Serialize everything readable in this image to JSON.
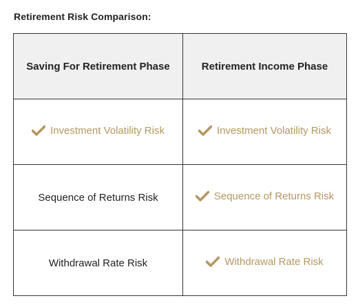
{
  "heading": "Retirement Risk Comparison:",
  "columns": [
    "Saving For Retirement Phase",
    "Retirement Income Phase"
  ],
  "rows": [
    {
      "saving": {
        "label": "Investment Volatility Risk",
        "checked": true
      },
      "income": {
        "label": "Investment Volatility Risk",
        "checked": true
      }
    },
    {
      "saving": {
        "label": "Sequence of Returns Risk",
        "checked": false
      },
      "income": {
        "label": "Sequence of Returns Risk",
        "checked": true
      }
    },
    {
      "saving": {
        "label": "Withdrawal Rate Risk",
        "checked": false
      },
      "income": {
        "label": "Withdrawal Rate Risk",
        "checked": true
      }
    }
  ],
  "colors": {
    "check_accent": "#b49761",
    "header_bg": "#f0f0f0",
    "border": "#333333"
  },
  "icons": {
    "check": "checkmark-icon"
  }
}
